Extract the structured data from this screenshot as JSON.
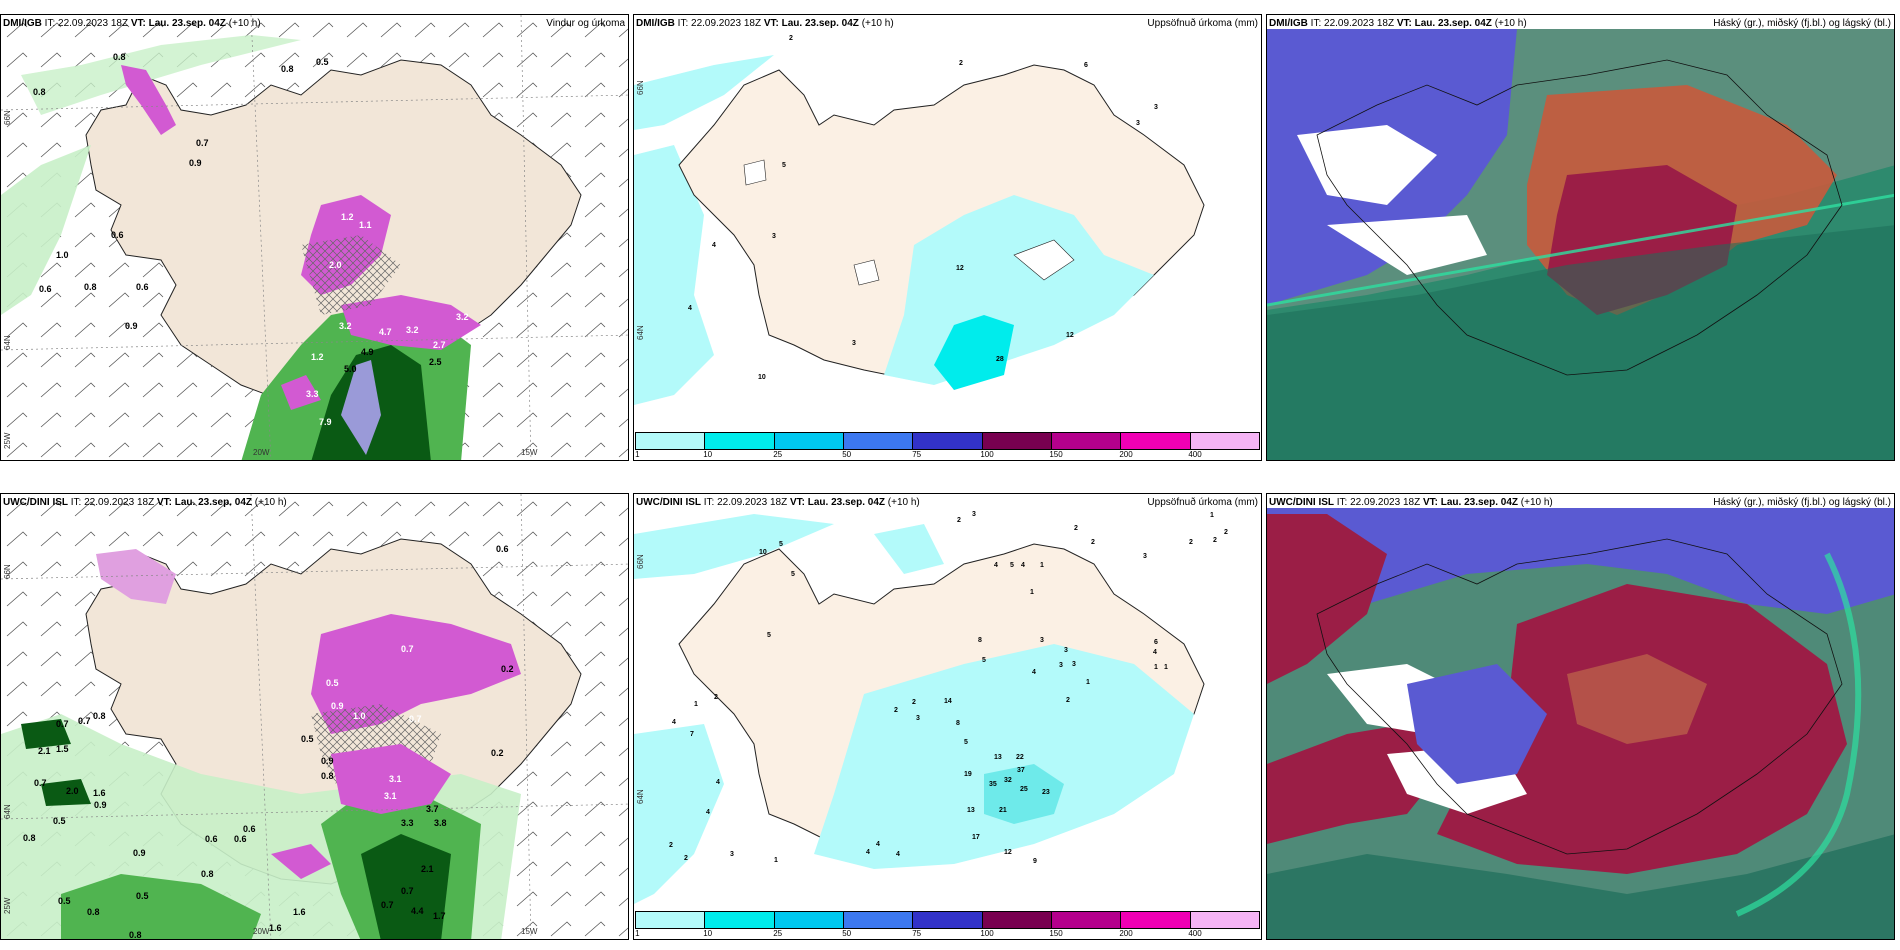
{
  "panels": [
    {
      "id": "p1",
      "model": "DMI/IGB",
      "init": "IT: 22.09.2023 18Z",
      "valid": "VT: Lau. 23.sep. 04Z",
      "lead": "(+10 h)",
      "title": "Vindur og úrkoma",
      "lat_labels": [
        "66N",
        "64N",
        "25W"
      ],
      "lon_labels": [
        "20W",
        "15W"
      ],
      "values": [
        "0.8",
        "0.5",
        "0.8",
        "0.8",
        "0.7",
        "0.9",
        "0.6",
        "1.0",
        "0.6",
        "0.8",
        "0.6",
        "0.9",
        "1.2",
        "1.1",
        "2.0",
        "3.2",
        "4.7",
        "3.2",
        "2.7",
        "3.2",
        "4.9",
        "2.5",
        "1.2",
        "5.0",
        "3.3",
        "7.9"
      ]
    },
    {
      "id": "p2",
      "model": "DMI/IGB",
      "init": "IT: 22.09.2023 18Z",
      "valid": "VT: Lau. 23.sep. 04Z",
      "lead": "(+10 h)",
      "title": "Uppsöfnuð úrkoma (mm)",
      "lat_labels": [
        "66N",
        "64N"
      ],
      "values": [
        "2",
        "2",
        "6",
        "3",
        "3",
        "5",
        "3",
        "4",
        "4",
        "10",
        "3",
        "12",
        "28",
        "12"
      ],
      "colorbar": {
        "colors": [
          "#b3fafa",
          "#00ecec",
          "#00c8f0",
          "#3c78f0",
          "#3232c8",
          "#780050",
          "#b4008c",
          "#f000b4",
          "#f5b4f5"
        ],
        "labels": [
          "1",
          "10",
          "25",
          "50",
          "75",
          "100",
          "150",
          "200",
          "400"
        ]
      }
    },
    {
      "id": "p3",
      "model": "DMI/IGB",
      "init": "IT: 22.09.2023 18Z",
      "valid": "VT: Lau. 23.sep. 04Z",
      "lead": "(+10 h)",
      "title": "Háský (gr.), miðský (fj.bl.) og lágský (bl.)"
    },
    {
      "id": "p4",
      "model": "UWC/DINI ISL",
      "init": "IT: 22.09.2023 18Z",
      "valid": "VT: Lau. 23.sep. 04Z",
      "lead": "(+10 h)",
      "title": "",
      "lat_labels": [
        "66N",
        "64N",
        "25W"
      ],
      "lon_labels": [
        "20W",
        "15W"
      ],
      "values": [
        "0.6",
        "0.7",
        "0.8",
        "0.7",
        "2.1",
        "1.5",
        "0.7",
        "2.0",
        "1.6",
        "0.9",
        "0.5",
        "0.8",
        "0.6",
        "0.9",
        "0.6",
        "0.6",
        "0.5",
        "0.8",
        "1.6",
        "0.7",
        "0.9",
        "0.8",
        "0.7",
        "0.5",
        "0.9",
        "1.0",
        "0.7",
        "0.2",
        "0.5",
        "0.2",
        "3.1",
        "3.1",
        "3.7",
        "3.3",
        "3.8",
        "2.1",
        "0.7",
        "4.4",
        "1.7",
        "1.6",
        "0.5",
        "0.8",
        "0.8"
      ]
    },
    {
      "id": "p5",
      "model": "UWC/DINI ISL",
      "init": "IT: 22.09.2023 18Z",
      "valid": "VT: Lau. 23.sep. 04Z",
      "lead": "(+10 h)",
      "title": "Uppsöfnuð úrkoma (mm)",
      "lat_labels": [
        "66N",
        "64N"
      ],
      "values": [
        "3",
        "2",
        "2",
        "2",
        "1",
        "5",
        "10",
        "5",
        "4",
        "5",
        "2",
        "4",
        "2",
        "1",
        "1",
        "2",
        "3",
        "3",
        "3",
        "6",
        "4",
        "1",
        "1",
        "3",
        "5",
        "1",
        "3",
        "2",
        "4",
        "1",
        "2",
        "5",
        "2",
        "7",
        "4",
        "4",
        "8",
        "3",
        "14",
        "2",
        "5",
        "13",
        "22",
        "37",
        "32",
        "35",
        "19",
        "25",
        "23",
        "8",
        "4",
        "13",
        "17",
        "21",
        "12",
        "4",
        "4",
        "4",
        "3",
        "1",
        "9",
        "2",
        "2"
      ],
      "colorbar": {
        "colors": [
          "#b3fafa",
          "#00ecec",
          "#00c8f0",
          "#3c78f0",
          "#3232c8",
          "#780050",
          "#b4008c",
          "#f000b4",
          "#f5b4f5"
        ],
        "labels": [
          "1",
          "10",
          "25",
          "50",
          "75",
          "100",
          "150",
          "200",
          "400"
        ]
      }
    },
    {
      "id": "p6",
      "model": "UWC/DINI ISL",
      "init": "IT: 22.09.2023 18Z",
      "valid": "VT: Lau. 23.sep. 04Z",
      "lead": "(+10 h)",
      "title": "Háský (gr.), miðský (fj.bl.) og lágský (bl.)"
    }
  ],
  "colors": {
    "land": "#f2e6d8",
    "ocean": "#ffffff",
    "precip_light": "#c8f0c8",
    "precip_med": "#50b450",
    "precip_dark": "#0a5a14",
    "snow": "#d25ad2",
    "accum_light": "#b3fafa",
    "accum_cyan": "#00ecec",
    "high_cloud": "#1e9b78",
    "mid_cloud": "#5a5ad2",
    "low_cloud": "#9b1e46"
  }
}
